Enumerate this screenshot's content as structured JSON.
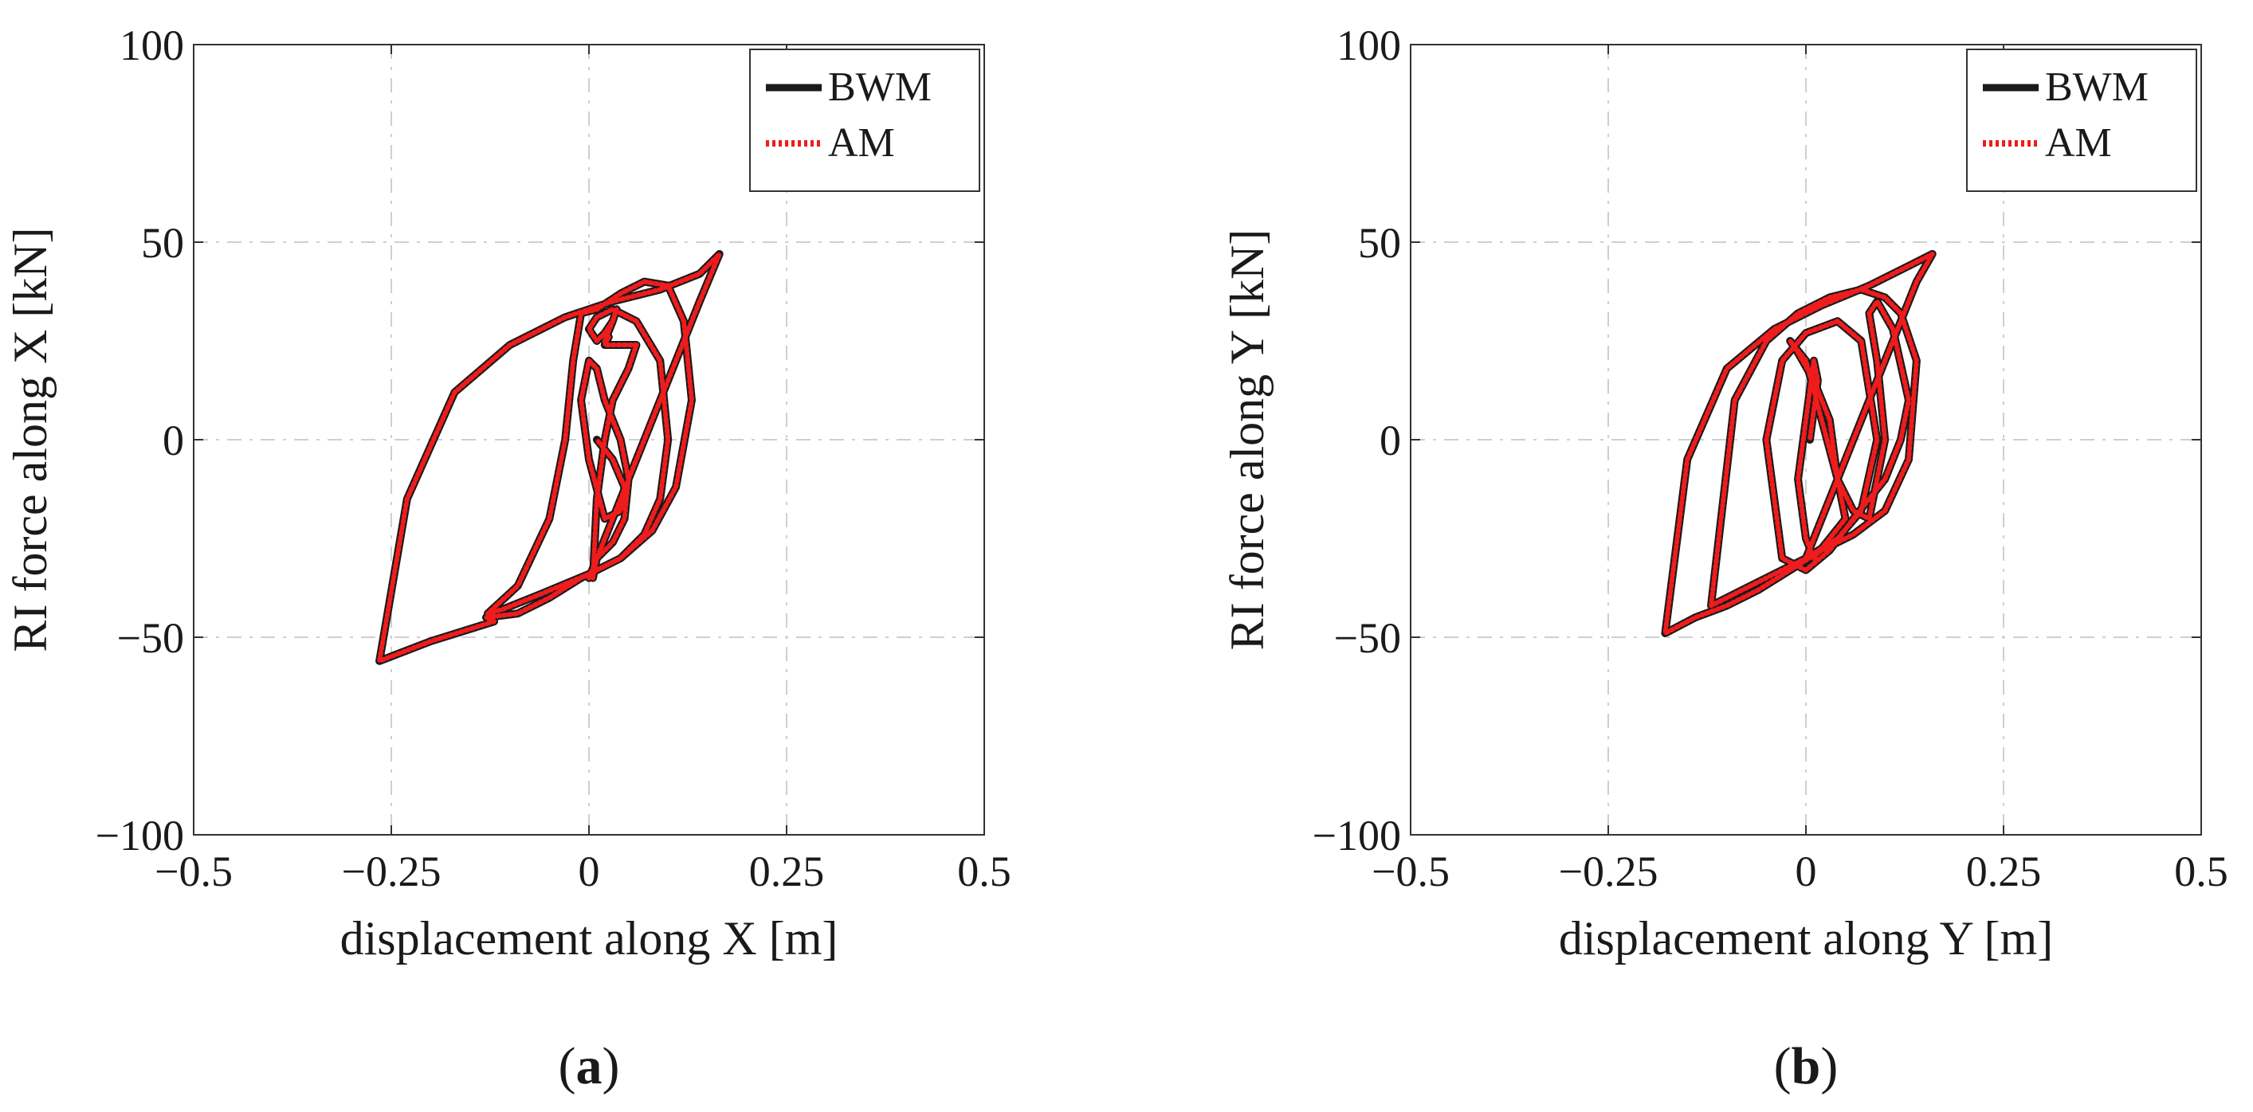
{
  "chart_data": [
    {
      "type": "line",
      "panel_label": "a",
      "xlabel": "displacement along X [m]",
      "ylabel": "RI force along X [kN]",
      "xlim": [
        -0.5,
        0.5
      ],
      "ylim": [
        -100,
        100
      ],
      "xticks": [
        -0.5,
        -0.25,
        0,
        0.25,
        0.5
      ],
      "xtick_labels": [
        "−0.5",
        "−0.25",
        "0",
        "0.25",
        "0.5"
      ],
      "yticks": [
        -100,
        -50,
        0,
        50,
        100
      ],
      "ytick_labels": [
        "−100",
        "−50",
        "0",
        "50",
        "100"
      ],
      "grid": true,
      "legend_position": "top-right",
      "series": [
        {
          "name": "BWM",
          "style": "solid",
          "color": "#1a1a1a",
          "x": [
            0.0,
            0.03,
            0.08,
            0.14,
            0.165,
            0.14,
            0.09,
            0.03,
            -0.03,
            -0.1,
            -0.17,
            -0.23,
            -0.265,
            -0.2,
            -0.12,
            -0.13,
            -0.09,
            -0.05,
            -0.01,
            0.04,
            0.08,
            0.11,
            0.13,
            0.12,
            0.1,
            0.07,
            0.04,
            0.01,
            -0.01,
            -0.02,
            -0.03,
            -0.05,
            -0.09,
            -0.128,
            -0.11,
            -0.06,
            0.0,
            0.04,
            0.07,
            0.09,
            0.1,
            0.09,
            0.06,
            0.03,
            0.01,
            0.0,
            0.01,
            0.02,
            0.03,
            0.035,
            0.03,
            0.02,
            0.025,
            0.02,
            0.06,
            0.05,
            0.03,
            0.02,
            0.01,
            0.005,
            0.01,
            0.03,
            0.045,
            0.05,
            0.04,
            0.02,
            0.01,
            0.0,
            -0.01,
            0.0,
            0.02,
            0.04,
            0.045,
            0.03,
            0.01
          ],
          "y": [
            -35,
            -20,
            5,
            35,
            47,
            42,
            38,
            35,
            31,
            24,
            12,
            -15,
            -56,
            -51,
            -46,
            -45,
            -44,
            -40,
            -35,
            -30,
            -23,
            -12,
            10,
            30,
            39,
            40,
            37,
            33,
            32,
            20,
            0,
            -20,
            -37,
            -44,
            -43,
            -39,
            -34,
            -30,
            -24,
            -15,
            0,
            20,
            30,
            33,
            31,
            28,
            25,
            27,
            30,
            33,
            30,
            25,
            26,
            24,
            24,
            18,
            10,
            0,
            -15,
            -35,
            -30,
            -26,
            -20,
            -10,
            0,
            10,
            18,
            20,
            10,
            -5,
            -20,
            -18,
            -12,
            -5,
            0
          ]
        },
        {
          "name": "AM",
          "style": "dotted",
          "color": "#ee1c1c",
          "x": [
            0.0,
            0.03,
            0.08,
            0.14,
            0.165,
            0.14,
            0.09,
            0.03,
            -0.03,
            -0.1,
            -0.17,
            -0.23,
            -0.265,
            -0.2,
            -0.12,
            -0.13,
            -0.09,
            -0.05,
            -0.01,
            0.04,
            0.08,
            0.11,
            0.13,
            0.12,
            0.1,
            0.07,
            0.04,
            0.01,
            -0.01,
            -0.02,
            -0.03,
            -0.05,
            -0.09,
            -0.128,
            -0.11,
            -0.06,
            0.0,
            0.04,
            0.07,
            0.09,
            0.1,
            0.09,
            0.06,
            0.03,
            0.01,
            0.0,
            0.01,
            0.02,
            0.03,
            0.035,
            0.03,
            0.02,
            0.025,
            0.02,
            0.06,
            0.05,
            0.03,
            0.02,
            0.01,
            0.005,
            0.01,
            0.03,
            0.045,
            0.05,
            0.04,
            0.02,
            0.01,
            0.0,
            -0.01,
            0.0,
            0.02,
            0.04,
            0.045,
            0.03,
            0.01
          ],
          "y": [
            -35,
            -20,
            5,
            35,
            47,
            42,
            38,
            35,
            31,
            24,
            12,
            -15,
            -56,
            -51,
            -46,
            -45,
            -44,
            -40,
            -35,
            -30,
            -23,
            -12,
            10,
            30,
            39,
            40,
            37,
            33,
            32,
            20,
            0,
            -20,
            -37,
            -44,
            -43,
            -39,
            -34,
            -30,
            -24,
            -15,
            0,
            20,
            30,
            33,
            31,
            28,
            25,
            27,
            30,
            33,
            30,
            25,
            26,
            24,
            24,
            18,
            10,
            0,
            -15,
            -35,
            -30,
            -26,
            -20,
            -10,
            0,
            10,
            18,
            20,
            10,
            -5,
            -20,
            -18,
            -12,
            -5,
            0
          ]
        }
      ]
    },
    {
      "type": "line",
      "panel_label": "b",
      "xlabel": "displacement along Y [m]",
      "ylabel": "RI force along Y [kN]",
      "xlim": [
        -0.5,
        0.5
      ],
      "ylim": [
        -100,
        100
      ],
      "xticks": [
        -0.5,
        -0.25,
        0,
        0.25,
        0.5
      ],
      "xtick_labels": [
        "−0.5",
        "−0.25",
        "0",
        "0.25",
        "0.5"
      ],
      "yticks": [
        -100,
        -50,
        0,
        50,
        100
      ],
      "ytick_labels": [
        "−100",
        "−50",
        "0",
        "50",
        "100"
      ],
      "grid": true,
      "legend_position": "top-right",
      "series": [
        {
          "name": "BWM",
          "style": "solid",
          "color": "#1a1a1a",
          "x": [
            0.0,
            0.04,
            0.09,
            0.14,
            0.16,
            0.13,
            0.08,
            0.02,
            -0.04,
            -0.1,
            -0.15,
            -0.178,
            -0.14,
            -0.1,
            -0.06,
            -0.02,
            0.02,
            0.06,
            0.1,
            0.13,
            0.14,
            0.12,
            0.1,
            0.07,
            0.03,
            -0.01,
            -0.05,
            -0.09,
            -0.12,
            -0.08,
            -0.04,
            0.0,
            0.04,
            0.07,
            0.09,
            0.07,
            0.04,
            0.0,
            -0.03,
            -0.05,
            -0.03,
            0.0,
            0.03,
            0.06,
            0.1,
            0.12,
            0.13,
            0.11,
            0.09,
            0.08,
            0.09,
            0.1,
            0.08,
            0.06,
            0.04,
            0.02,
            0.0,
            -0.02,
            -0.01,
            0.01,
            0.03,
            0.04,
            0.05,
            0.03,
            0.01,
            0.0,
            -0.01,
            0.0,
            0.01,
            0.015,
            0.005
          ],
          "y": [
            -30,
            -10,
            15,
            40,
            47,
            44,
            39,
            34,
            28,
            18,
            -5,
            -49,
            -45,
            -42,
            -38,
            -33,
            -28,
            -24,
            -18,
            -5,
            20,
            32,
            36,
            38,
            36,
            32,
            25,
            10,
            -42,
            -38,
            -34,
            -30,
            -25,
            -18,
            0,
            25,
            30,
            27,
            20,
            0,
            -30,
            -33,
            -28,
            -20,
            -10,
            0,
            10,
            28,
            35,
            32,
            20,
            0,
            -20,
            -18,
            -10,
            5,
            20,
            25,
            22,
            15,
            5,
            -10,
            -20,
            -25,
            -30,
            -25,
            -10,
            5,
            20,
            15,
            0
          ]
        },
        {
          "name": "AM",
          "style": "dotted",
          "color": "#ee1c1c",
          "x": [
            0.0,
            0.04,
            0.09,
            0.14,
            0.16,
            0.13,
            0.08,
            0.02,
            -0.04,
            -0.1,
            -0.15,
            -0.178,
            -0.14,
            -0.1,
            -0.06,
            -0.02,
            0.02,
            0.06,
            0.1,
            0.13,
            0.14,
            0.12,
            0.1,
            0.07,
            0.03,
            -0.01,
            -0.05,
            -0.09,
            -0.12,
            -0.08,
            -0.04,
            0.0,
            0.04,
            0.07,
            0.09,
            0.07,
            0.04,
            0.0,
            -0.03,
            -0.05,
            -0.03,
            0.0,
            0.03,
            0.06,
            0.1,
            0.12,
            0.13,
            0.11,
            0.09,
            0.08,
            0.09,
            0.1,
            0.08,
            0.06,
            0.04,
            0.02,
            0.0,
            -0.02,
            -0.01,
            0.01,
            0.03,
            0.04,
            0.05,
            0.03,
            0.01,
            0.0,
            -0.01,
            0.0,
            0.01,
            0.015,
            0.005
          ],
          "y": [
            -30,
            -10,
            15,
            40,
            47,
            44,
            39,
            34,
            28,
            18,
            -5,
            -49,
            -45,
            -42,
            -38,
            -33,
            -28,
            -24,
            -18,
            -5,
            20,
            32,
            36,
            38,
            36,
            32,
            25,
            10,
            -42,
            -38,
            -34,
            -30,
            -25,
            -18,
            0,
            25,
            30,
            27,
            20,
            0,
            -30,
            -33,
            -28,
            -20,
            -10,
            0,
            10,
            28,
            35,
            32,
            20,
            0,
            -20,
            -18,
            -10,
            5,
            20,
            25,
            22,
            15,
            5,
            -10,
            -20,
            -25,
            -30,
            -25,
            -10,
            5,
            20,
            15,
            0
          ]
        }
      ]
    }
  ]
}
